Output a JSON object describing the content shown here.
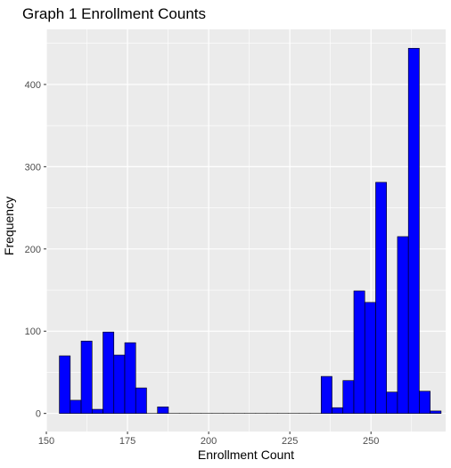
{
  "chart_data": {
    "type": "bar",
    "title": "Graph 1 Enrollment Counts",
    "xlabel": "Enrollment Count",
    "ylabel": "Frequency",
    "bin_width": 3.36,
    "bin_start": 154.0,
    "values": [
      70,
      16,
      88,
      5,
      99,
      71,
      86,
      31,
      0,
      8,
      0,
      0,
      0,
      0,
      0,
      0,
      0,
      0,
      0,
      0,
      0,
      0,
      0,
      0,
      45,
      7,
      40,
      149,
      135,
      281,
      26,
      215,
      444,
      27,
      3
    ],
    "xlim": [
      150,
      273
    ],
    "ylim": [
      -22,
      467
    ],
    "x_ticks": [
      150,
      175,
      200,
      225,
      250,
      275
    ],
    "y_ticks": [
      0,
      100,
      200,
      300,
      400
    ],
    "bar_fill": "#0000ff",
    "bar_stroke": "#000000",
    "panel_bg": "#ebebeb",
    "grid_color": "#ffffff",
    "grid": true,
    "legend": "none"
  }
}
